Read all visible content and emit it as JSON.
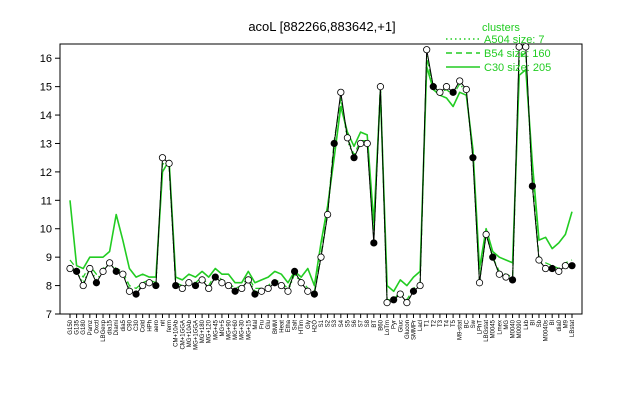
{
  "chart_data": {
    "type": "line",
    "title": "acoL [882266,883642,+1]",
    "xlabel": "",
    "ylabel": "",
    "ylim": [
      7,
      16.5
    ],
    "yticks": [
      7,
      8,
      9,
      10,
      11,
      12,
      13,
      14,
      15,
      16
    ],
    "grid": false,
    "legend": {
      "title": "clusters",
      "position": "top-right",
      "entries": [
        {
          "label": "A504 size: 7",
          "style": "dotted",
          "color": "#22cc22"
        },
        {
          "label": "B54 size: 160",
          "style": "dashed",
          "color": "#22cc22"
        },
        {
          "label": "C30 size: 205",
          "style": "solid",
          "color": "#22cc22"
        }
      ]
    },
    "x_tick_labels": [
      "G150",
      "G135",
      "G180",
      "Pamz",
      "Oxctl",
      "LBGexp",
      "dia15",
      "Diami",
      "dia5",
      "C90",
      "C30",
      "Cold",
      "HPh",
      "aero",
      "nit",
      "ferm",
      "CM+10Ab",
      "CM+1GGA",
      "MG+10Ab",
      "MG+1GGA",
      "MG+180",
      "MG+120",
      "MG+45",
      "MG+5",
      "MG+90",
      "MG+60",
      "MG+30",
      "MG+15",
      "Mal",
      "Fru",
      "Glu",
      "BMM",
      "Heat",
      "Etha",
      "Salt",
      "HTim",
      "Gly",
      "H2O",
      "S1",
      "S2",
      "S3",
      "S4",
      "S5",
      "S6",
      "S7",
      "S8",
      "BT",
      "B60",
      "LoTm",
      "Pyr",
      "Gluc",
      "Glucon",
      "SMMPr",
      "Lacl",
      "T1",
      "T2",
      "T3",
      "T4",
      "T5",
      "M9-stat",
      "BC",
      "Sw",
      "LPhT",
      "LBGstat",
      "M0045",
      "Lmex",
      "MG",
      "M0040",
      "M0090",
      "Lkb",
      "BI",
      "Sb",
      "M0040s",
      "Bl",
      "dia0",
      "M9",
      "LBstat"
    ],
    "series": [
      {
        "style": "points",
        "values": [
          8.6,
          8.5,
          8.0,
          8.6,
          8.1,
          8.5,
          8.8,
          8.5,
          8.4,
          7.8,
          7.7,
          8.0,
          8.1,
          8.0,
          12.5,
          12.3,
          8.0,
          7.9,
          8.1,
          8.0,
          8.2,
          7.9,
          8.3,
          8.1,
          8.0,
          7.8,
          7.9,
          8.2,
          7.7,
          7.8,
          7.9,
          8.1,
          8.0,
          7.8,
          8.5,
          8.1,
          7.8,
          7.7,
          9.0,
          10.5,
          13.0,
          14.8,
          13.2,
          12.5,
          13.0,
          13.0,
          9.5,
          15.0,
          7.4,
          7.5,
          7.7,
          7.4,
          7.8,
          8.0,
          16.3,
          15.0,
          14.8,
          15.0,
          14.8,
          15.2,
          14.9,
          12.5,
          8.1,
          9.8,
          9.0,
          8.4,
          8.3,
          8.2,
          16.4,
          16.4,
          11.5,
          8.9,
          8.6,
          8.6,
          8.5,
          8.7,
          8.7
        ]
      },
      {
        "name": "C30",
        "style": "solid",
        "values": [
          11.0,
          8.7,
          8.6,
          9.0,
          9.0,
          9.0,
          9.2,
          10.5,
          9.6,
          8.6,
          8.3,
          8.4,
          8.3,
          8.3,
          12.0,
          12.4,
          8.3,
          8.2,
          8.4,
          8.3,
          8.5,
          8.3,
          8.6,
          8.4,
          8.4,
          8.1,
          8.1,
          8.5,
          8.1,
          8.2,
          8.3,
          8.5,
          8.4,
          8.1,
          8.5,
          8.3,
          8.6,
          8.0,
          9.5,
          10.8,
          12.5,
          14.3,
          13.4,
          12.9,
          13.4,
          13.3,
          10.2,
          14.8,
          8.0,
          7.8,
          8.2,
          8.0,
          8.3,
          8.5,
          15.7,
          14.9,
          14.7,
          14.6,
          14.3,
          14.8,
          14.7,
          12.8,
          8.6,
          10.0,
          9.2,
          9.0,
          8.9,
          8.8,
          15.4,
          15.6,
          12.3,
          9.6,
          9.7,
          9.3,
          9.5,
          9.8,
          10.6
        ]
      },
      {
        "name": "B54",
        "style": "dashed",
        "values": [
          8.9,
          8.6,
          8.3,
          8.7,
          8.4,
          8.6,
          8.8,
          8.6,
          8.5,
          8.0,
          7.9,
          8.1,
          8.2,
          8.1,
          12.3,
          12.2,
          8.1,
          8.0,
          8.2,
          8.1,
          8.3,
          8.0,
          8.4,
          8.2,
          8.1,
          7.9,
          8.0,
          8.3,
          7.9,
          7.9,
          8.0,
          8.2,
          8.1,
          7.9,
          8.4,
          8.2,
          7.9,
          7.8,
          9.1,
          10.6,
          13.1,
          14.6,
          13.2,
          12.6,
          13.1,
          13.1,
          9.7,
          15.1,
          7.5,
          7.5,
          7.8,
          7.5,
          7.9,
          8.1,
          16.0,
          15.0,
          14.8,
          14.9,
          14.7,
          15.1,
          14.8,
          12.6,
          8.2,
          9.9,
          9.0,
          8.5,
          8.4,
          8.3,
          16.0,
          16.2,
          11.7,
          9.0,
          8.8,
          8.7,
          8.6,
          8.8,
          8.9
        ]
      },
      {
        "name": "A504",
        "style": "dotted",
        "values": [
          8.7,
          8.5,
          8.1,
          8.6,
          8.2,
          8.5,
          8.8,
          8.5,
          8.4,
          7.9,
          7.8,
          8.0,
          8.1,
          8.0,
          12.4,
          12.2,
          8.0,
          7.9,
          8.1,
          8.0,
          8.2,
          7.9,
          8.3,
          8.1,
          8.0,
          7.8,
          7.9,
          8.2,
          7.8,
          7.8,
          7.9,
          8.1,
          8.0,
          7.8,
          8.4,
          8.1,
          7.8,
          7.7,
          9.0,
          10.5,
          13.0,
          14.7,
          13.1,
          12.5,
          13.0,
          13.0,
          9.6,
          15.0,
          7.4,
          7.5,
          7.7,
          7.4,
          7.8,
          8.0,
          16.1,
          15.0,
          14.8,
          14.9,
          14.7,
          15.1,
          14.8,
          12.5,
          8.1,
          9.8,
          9.0,
          8.4,
          8.3,
          8.2,
          16.1,
          16.2,
          11.5,
          8.9,
          8.6,
          8.6,
          8.5,
          8.7,
          8.7
        ]
      }
    ]
  },
  "colors": {
    "cluster_line": "#22cc22",
    "point_fill_open": "#ffffff",
    "point_fill_closed": "#000000"
  }
}
